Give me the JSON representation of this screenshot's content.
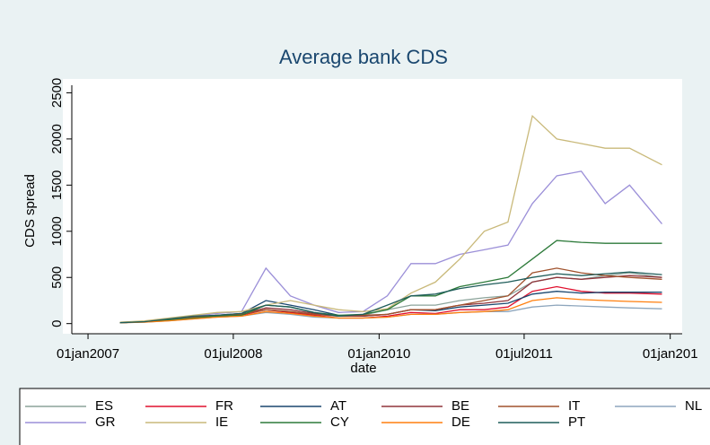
{
  "chart_data": {
    "type": "line",
    "title": "Average bank CDS",
    "x_label": "date",
    "y_label": "CDS spread",
    "x": [
      "2007-05-01",
      "2007-08-01",
      "2007-11-01",
      "2008-02-01",
      "2008-05-01",
      "2008-08-01",
      "2008-11-01",
      "2009-02-01",
      "2009-05-01",
      "2009-08-01",
      "2009-11-01",
      "2010-02-01",
      "2010-05-01",
      "2010-08-01",
      "2010-11-01",
      "2011-02-01",
      "2011-05-01",
      "2011-08-01",
      "2011-11-01",
      "2012-02-01",
      "2012-05-01",
      "2012-08-01",
      "2012-12-01"
    ],
    "xlim": [
      "2006-11-01",
      "2013-02-15"
    ],
    "xticks": [
      {
        "value": "2007-01-01",
        "label": "01jan2007"
      },
      {
        "value": "2008-07-01",
        "label": "01jul2008"
      },
      {
        "value": "2010-01-01",
        "label": "01jan2010"
      },
      {
        "value": "2011-07-01",
        "label": "01jul2011"
      },
      {
        "value": "2013-01-01",
        "label": "01jan201"
      }
    ],
    "ylim": [
      -110,
      2650
    ],
    "yticks": [
      0,
      500,
      1000,
      1500,
      2000,
      2500
    ],
    "series": [
      {
        "name": "ES",
        "color": "#8ba39a",
        "values": [
          10,
          20,
          45,
          70,
          90,
          100,
          150,
          130,
          100,
          80,
          90,
          150,
          200,
          200,
          250,
          280,
          300,
          450,
          500,
          480,
          520,
          550,
          500
        ]
      },
      {
        "name": "FR",
        "color": "#e0102e",
        "values": [
          10,
          20,
          40,
          60,
          80,
          90,
          150,
          120,
          90,
          60,
          60,
          80,
          120,
          110,
          150,
          150,
          180,
          350,
          400,
          350,
          330,
          330,
          320
        ]
      },
      {
        "name": "AT",
        "color": "#1a476f",
        "values": [
          10,
          20,
          40,
          70,
          90,
          110,
          250,
          200,
          150,
          90,
          80,
          100,
          150,
          140,
          180,
          200,
          220,
          320,
          350,
          330,
          340,
          340,
          340
        ]
      },
      {
        "name": "BE",
        "color": "#90353b",
        "values": [
          10,
          20,
          40,
          70,
          90,
          100,
          170,
          150,
          110,
          80,
          80,
          100,
          150,
          150,
          200,
          220,
          250,
          450,
          500,
          480,
          500,
          520,
          500
        ]
      },
      {
        "name": "IT",
        "color": "#a0522d",
        "values": [
          10,
          20,
          45,
          70,
          90,
          100,
          150,
          130,
          100,
          80,
          90,
          100,
          150,
          150,
          200,
          250,
          300,
          550,
          600,
          550,
          520,
          500,
          480
        ]
      },
      {
        "name": "NL",
        "color": "#8ea6bd",
        "values": [
          10,
          15,
          30,
          50,
          70,
          80,
          120,
          100,
          70,
          60,
          60,
          70,
          100,
          100,
          120,
          130,
          130,
          180,
          200,
          190,
          180,
          170,
          160
        ]
      },
      {
        "name": "GR",
        "color": "#9b8fd8",
        "values": [
          10,
          25,
          50,
          80,
          110,
          130,
          600,
          300,
          200,
          120,
          130,
          300,
          650,
          650,
          750,
          800,
          850,
          1300,
          1600,
          1650,
          1300,
          1500,
          1080
        ]
      },
      {
        "name": "IE",
        "color": "#c9b97a",
        "values": [
          15,
          30,
          60,
          90,
          120,
          130,
          200,
          250,
          200,
          150,
          130,
          160,
          330,
          450,
          700,
          1000,
          1100,
          2250,
          2000,
          1950,
          1900,
          1900,
          1720
        ]
      },
      {
        "name": "CY",
        "color": "#2d7a3a",
        "values": [
          10,
          20,
          40,
          60,
          80,
          90,
          200,
          180,
          120,
          90,
          100,
          150,
          300,
          300,
          400,
          450,
          500,
          700,
          900,
          880,
          870,
          870,
          870
        ]
      },
      {
        "name": "DE",
        "color": "#ff7f0e",
        "values": [
          10,
          15,
          30,
          50,
          70,
          80,
          130,
          110,
          80,
          60,
          60,
          70,
          100,
          100,
          120,
          130,
          150,
          250,
          280,
          260,
          250,
          240,
          230
        ]
      },
      {
        "name": "PT",
        "color": "#1f5d5a",
        "values": [
          10,
          20,
          50,
          80,
          90,
          110,
          200,
          180,
          120,
          80,
          100,
          200,
          300,
          320,
          380,
          420,
          450,
          500,
          540,
          520,
          540,
          560,
          530
        ]
      }
    ]
  }
}
